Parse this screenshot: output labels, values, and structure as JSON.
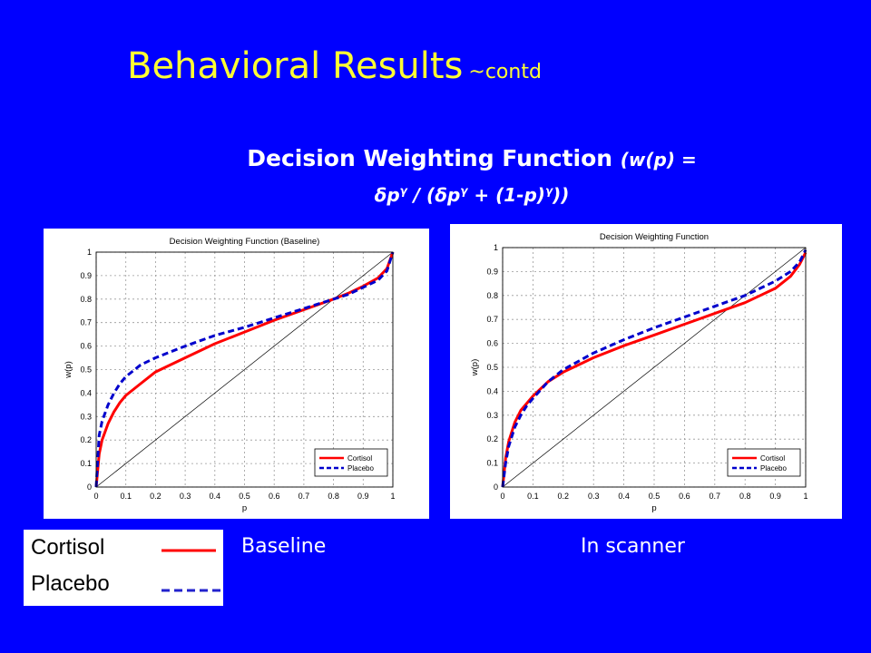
{
  "slide": {
    "title": "Behavioral Results",
    "title_suffix": "~contd",
    "subtitle_main": "Decision Weighting Function",
    "subtitle_formula_lead": "(w(p) =",
    "formula_parts": [
      "δp",
      "γ",
      " / (δp",
      "γ",
      " + (1-p)",
      "γ",
      "))"
    ],
    "title_color": "#ffff33",
    "background_color": "#0000ff"
  },
  "legend": {
    "entries": [
      {
        "label": "Cortisol",
        "style": "solid",
        "color": "#ff0000"
      },
      {
        "label": "Placebo",
        "style": "dashed",
        "color": "#0000cc"
      }
    ]
  },
  "captions": {
    "baseline": "Baseline",
    "scanner": "In scanner"
  },
  "chart_data": [
    {
      "type": "line",
      "title": "Decision Weighting Function (Baseline)",
      "xlabel": "p",
      "ylabel": "w(p)",
      "xlim": [
        0,
        1
      ],
      "ylim": [
        0,
        1
      ],
      "xticks": [
        "0",
        "0.1",
        "0.2",
        "0.3",
        "0.4",
        "0.5",
        "0.6",
        "0.7",
        "0.8",
        "0.9",
        "1"
      ],
      "yticks": [
        "0",
        "0.1",
        "0.2",
        "0.3",
        "0.4",
        "0.5",
        "0.6",
        "0.7",
        "0.8",
        "0.9",
        "1"
      ],
      "grid": true,
      "legend_position": "bottom-right",
      "diagonal": true,
      "series": [
        {
          "name": "Cortisol",
          "color": "#ff0000",
          "style": "solid",
          "x": [
            0,
            0.01,
            0.02,
            0.04,
            0.06,
            0.08,
            0.1,
            0.15,
            0.2,
            0.3,
            0.4,
            0.5,
            0.6,
            0.7,
            0.8,
            0.85,
            0.9,
            0.95,
            0.98,
            1
          ],
          "y": [
            0,
            0.14,
            0.2,
            0.27,
            0.32,
            0.36,
            0.39,
            0.44,
            0.49,
            0.55,
            0.61,
            0.66,
            0.71,
            0.755,
            0.8,
            0.825,
            0.855,
            0.89,
            0.93,
            1
          ]
        },
        {
          "name": "Placebo",
          "color": "#0000cc",
          "style": "dashed",
          "x": [
            0,
            0.01,
            0.02,
            0.04,
            0.06,
            0.08,
            0.1,
            0.15,
            0.2,
            0.3,
            0.4,
            0.5,
            0.6,
            0.7,
            0.8,
            0.85,
            0.9,
            0.95,
            0.98,
            1
          ],
          "y": [
            0,
            0.22,
            0.28,
            0.35,
            0.4,
            0.44,
            0.47,
            0.52,
            0.55,
            0.6,
            0.645,
            0.68,
            0.72,
            0.76,
            0.8,
            0.82,
            0.85,
            0.88,
            0.92,
            1
          ]
        }
      ]
    },
    {
      "type": "line",
      "title": "Decision Weighting Function",
      "xlabel": "p",
      "ylabel": "w(p)",
      "xlim": [
        0,
        1
      ],
      "ylim": [
        0,
        1
      ],
      "xticks": [
        "0",
        "0.1",
        "0.2",
        "0.3",
        "0.4",
        "0.5",
        "0.6",
        "0.7",
        "0.8",
        "0.9",
        "1"
      ],
      "yticks": [
        "0",
        "0.1",
        "0.2",
        "0.3",
        "0.4",
        "0.5",
        "0.6",
        "0.7",
        "0.8",
        "0.9",
        "1"
      ],
      "grid": true,
      "legend_position": "bottom-right",
      "diagonal": true,
      "series": [
        {
          "name": "Cortisol",
          "color": "#ff0000",
          "style": "solid",
          "x": [
            0,
            0.01,
            0.02,
            0.04,
            0.06,
            0.08,
            0.1,
            0.15,
            0.2,
            0.3,
            0.4,
            0.5,
            0.6,
            0.7,
            0.8,
            0.85,
            0.9,
            0.95,
            0.98,
            1
          ],
          "y": [
            0,
            0.12,
            0.19,
            0.27,
            0.32,
            0.35,
            0.38,
            0.44,
            0.48,
            0.54,
            0.59,
            0.635,
            0.68,
            0.725,
            0.77,
            0.8,
            0.83,
            0.88,
            0.93,
            0.98
          ]
        },
        {
          "name": "Placebo",
          "color": "#0000cc",
          "style": "dashed",
          "x": [
            0,
            0.01,
            0.02,
            0.04,
            0.06,
            0.08,
            0.1,
            0.15,
            0.2,
            0.3,
            0.4,
            0.5,
            0.6,
            0.7,
            0.8,
            0.85,
            0.9,
            0.95,
            0.98,
            1
          ],
          "y": [
            0,
            0.1,
            0.17,
            0.25,
            0.3,
            0.34,
            0.37,
            0.44,
            0.49,
            0.56,
            0.615,
            0.665,
            0.71,
            0.755,
            0.8,
            0.83,
            0.86,
            0.9,
            0.94,
            0.99
          ]
        }
      ]
    }
  ]
}
